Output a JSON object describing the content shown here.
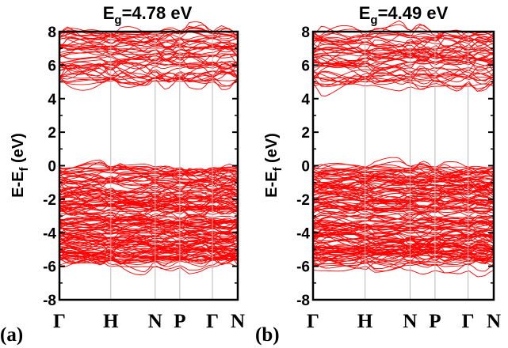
{
  "chart_data": [
    {
      "type": "line",
      "panel_label": "(a)",
      "title_main": "E",
      "title_sub": "g",
      "title_rest": "=4.78 eV",
      "ylabel_main": "E-E",
      "ylabel_sub": "f",
      "ylabel_rest": " (eV)",
      "ylim": [
        -8,
        8
      ],
      "yticks": [
        "-8",
        "-6",
        "-4",
        "-2",
        "0",
        "2",
        "4",
        "6",
        "8"
      ],
      "kpath": [
        "Γ",
        "H",
        "N",
        "P",
        "Γ",
        "N"
      ],
      "kpos": [
        0,
        0.288,
        0.537,
        0.675,
        0.858,
        1
      ],
      "valence_band": [
        -6.0,
        0.0
      ],
      "conduction_band": [
        4.78,
        8.0
      ],
      "band_gap_eV": 4.78,
      "band_color": "#ff0000",
      "grid": true
    },
    {
      "type": "line",
      "panel_label": "(b)",
      "title_main": "E",
      "title_sub": "g",
      "title_rest": "=4.49 eV",
      "ylabel_main": "E-E",
      "ylabel_sub": "f",
      "ylabel_rest": " (eV)",
      "ylim": [
        -8,
        8
      ],
      "yticks": [
        "-8",
        "-6",
        "-4",
        "-2",
        "0",
        "2",
        "4",
        "6",
        "8"
      ],
      "kpath": [
        "Γ",
        "H",
        "N",
        "P",
        "Γ",
        "N"
      ],
      "kpos": [
        0,
        0.288,
        0.537,
        0.675,
        0.858,
        1
      ],
      "valence_band": [
        -6.1,
        0.0
      ],
      "conduction_band": [
        4.49,
        8.0
      ],
      "band_gap_eV": 4.49,
      "band_color": "#ff0000",
      "grid": true
    }
  ]
}
